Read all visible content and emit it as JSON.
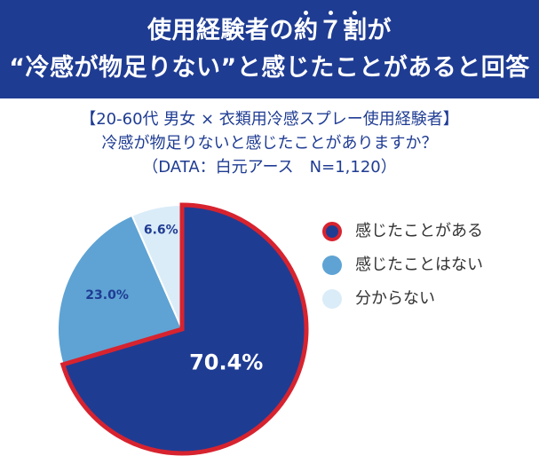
{
  "header": {
    "line1_prefix": "使用経験者の",
    "line1_emph": [
      "約",
      "７",
      "割"
    ],
    "line1_suffix": "が",
    "line2": "“冷感が物足りない”と感じたことがあると回答"
  },
  "subtitle": {
    "line1": "【20-60代 男女 × 衣類用冷感スプレー使用経験者】",
    "line2": "冷感が物足りないと感じたことがありますか？",
    "line3": "（DATA：白元アース　N=1,120）"
  },
  "chart_data": {
    "type": "pie",
    "start_angle_deg": 0,
    "direction": "clockwise",
    "slices": [
      {
        "label": "感じたことがある",
        "value": 70.4,
        "display": "70.4%",
        "color": "#1f3c93",
        "outline": "#d7232f",
        "text_color": "#ffffff"
      },
      {
        "label": "感じたことはない",
        "value": 23.0,
        "display": "23.0%",
        "color": "#5ea3d4",
        "outline": "#ffffff",
        "text_color": "#1f3c93"
      },
      {
        "label": "分からない",
        "value": 6.6,
        "display": "6.6%",
        "color": "#daecf8",
        "outline": "#ffffff",
        "text_color": "#1f3c93"
      }
    ]
  },
  "legend": {
    "placement": "right",
    "items": [
      {
        "label": "感じたことがある",
        "color": "#1f3c93",
        "outline": "#d7232f"
      },
      {
        "label": "感じたことはない",
        "color": "#5ea3d4",
        "outline": "#5ea3d4"
      },
      {
        "label": "分からない",
        "color": "#daecf8",
        "outline": "#daecf8"
      }
    ]
  }
}
